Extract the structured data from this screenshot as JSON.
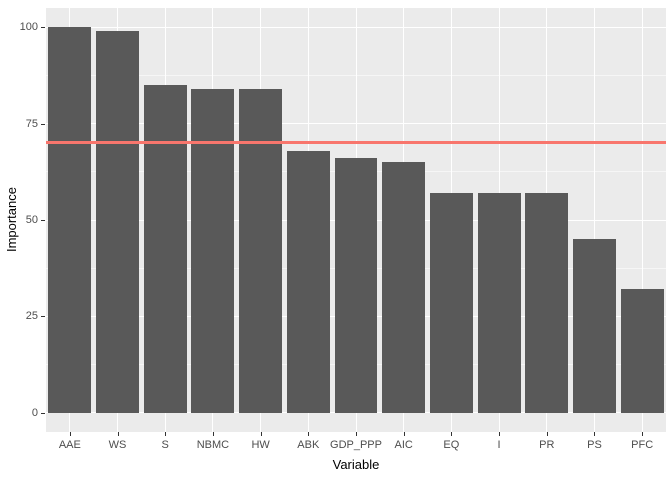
{
  "chart_data": {
    "type": "bar",
    "title": "",
    "xlabel": "Variable",
    "ylabel": "Importance",
    "categories": [
      "AAE",
      "WS",
      "S",
      "NBMC",
      "HW",
      "ABK",
      "GDP_PPP",
      "AIC",
      "EQ",
      "I",
      "PR",
      "PS",
      "PFC"
    ],
    "values": [
      100,
      99,
      85,
      84,
      84,
      68,
      66,
      65,
      57,
      57,
      57,
      45,
      32
    ],
    "ylim": [
      0,
      100
    ],
    "y_ticks": [
      0,
      25,
      50,
      75,
      100
    ],
    "y_expansion": 5,
    "reference_line": {
      "y": 70,
      "color": "#F8766D"
    },
    "bar_color": "#595959",
    "panel_background": "#EBEBEB",
    "grid_color": "#FFFFFF",
    "axis_text_color": "#4D4D4D",
    "axis_title_color": "#000000",
    "grid": true,
    "legend": "none"
  }
}
